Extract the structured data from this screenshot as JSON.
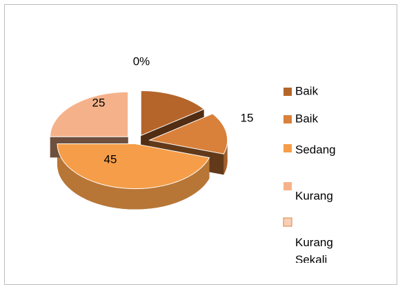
{
  "chart_data": {
    "type": "pie",
    "categories": [
      "Baik",
      "Baik",
      "Sedang",
      "Kurang",
      "Kurang Sekali"
    ],
    "values": [
      15,
      15,
      45,
      25,
      0
    ],
    "value_labels": [
      null,
      "15",
      "45",
      "25",
      "0%"
    ],
    "colors": [
      "#b5652a",
      "#d9803a",
      "#f59d48",
      "#f5b28a",
      "#f9cfb5"
    ],
    "legend": "right"
  }
}
